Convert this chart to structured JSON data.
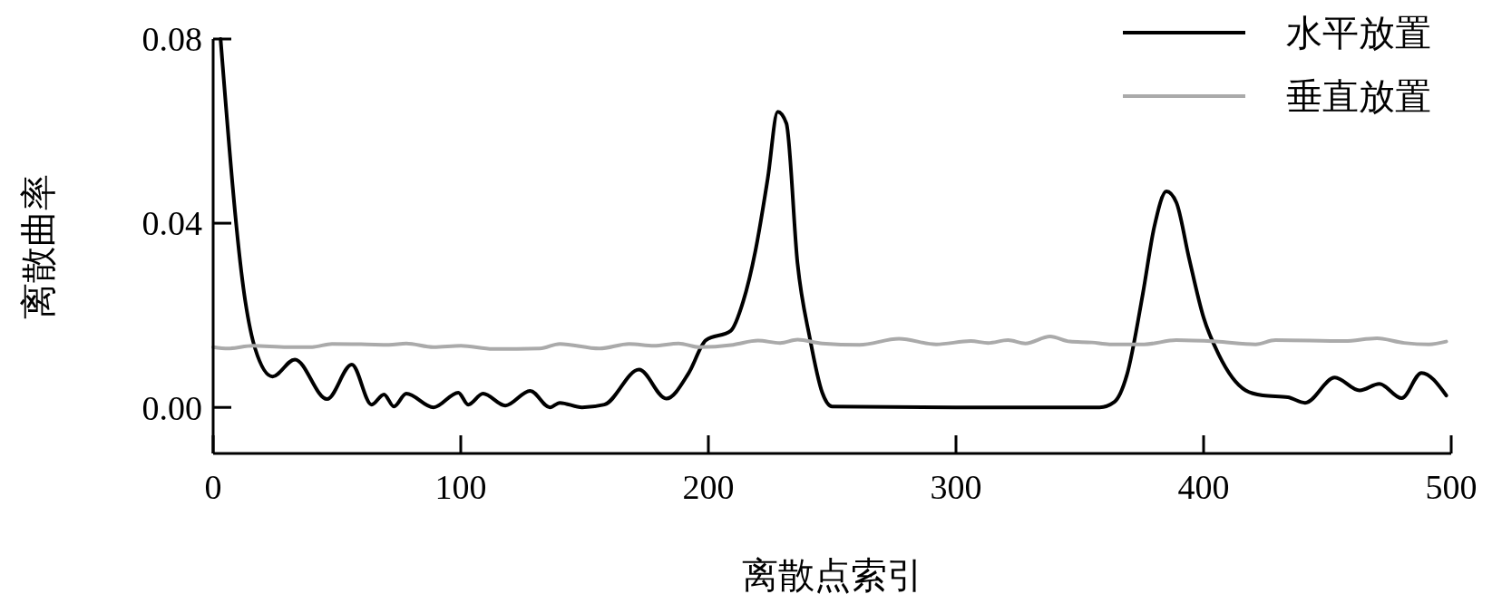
{
  "chart_data": {
    "type": "line",
    "xlabel": "离散点索引",
    "ylabel": "离散曲率",
    "xlim": [
      0,
      500
    ],
    "ylim": [
      -0.01,
      0.08
    ],
    "xticks": [
      0,
      100,
      200,
      300,
      400,
      500
    ],
    "yticks": [
      {
        "value": 0,
        "label": "0.00"
      },
      {
        "value": 0.04,
        "label": "0.04"
      },
      {
        "value": 0.08,
        "label": "0.08"
      }
    ],
    "legend": "top right",
    "grid": false,
    "line_style": "solid",
    "marker": "none",
    "series": [
      {
        "name": "水平放置",
        "color": "#000000",
        "x": [
          3,
          13,
          17,
          24,
          33,
          46,
          56,
          64,
          69,
          73,
          78,
          89,
          99,
          103,
          109,
          118,
          128,
          136,
          140,
          149,
          158,
          172,
          183,
          192,
          199,
          209,
          214,
          219,
          224,
          228,
          231.5,
          236,
          241,
          246,
          250,
          300,
          358,
          364,
          369,
          375.5,
          380,
          385,
          389,
          394,
          400,
          406,
          417,
          424,
          434,
          441,
          453,
          463,
          471,
          480,
          488,
          498
        ],
        "values": [
          0.08,
          0.023,
          0.0127,
          0.0067,
          0.0104,
          0.0018,
          0.0093,
          0.0006,
          0.0028,
          0.0002,
          0.003,
          0,
          0.0032,
          0.0006,
          0.003,
          0.0004,
          0.0036,
          0,
          0.001,
          0,
          0.0006,
          0.0082,
          0.0019,
          0.0074,
          0.0146,
          0.0166,
          0.0229,
          0.034,
          0.0498,
          0.0642,
          0.0617,
          0.0313,
          0.015,
          0.0032,
          0.0002,
          0,
          0,
          0.0012,
          0.007,
          0.0248,
          0.039,
          0.0469,
          0.0445,
          0.0327,
          0.0195,
          0.0116,
          0.0037,
          0.0026,
          0.0022,
          0.001,
          0.0065,
          0.0037,
          0.0051,
          0.002,
          0.0075,
          0.0026
        ]
      },
      {
        "name": "垂直放置",
        "color": "#aaaaaa",
        "x": [
          0,
          6,
          16,
          30,
          40,
          48,
          62,
          71,
          78,
          89,
          100,
          113,
          132,
          140,
          156,
          168,
          178,
          188,
          196,
          210,
          220,
          229,
          236,
          246,
          261,
          277,
          292,
          306,
          313,
          321,
          328,
          338,
          346,
          355,
          362,
          376,
          389,
          405,
          421,
          429,
          457,
          470,
          481,
          491,
          498
        ],
        "values": [
          0.0131,
          0.0128,
          0.0134,
          0.0131,
          0.0131,
          0.0138,
          0.0137,
          0.0136,
          0.0139,
          0.0131,
          0.0134,
          0.0127,
          0.0128,
          0.0138,
          0.0128,
          0.0138,
          0.0134,
          0.0139,
          0.0131,
          0.0136,
          0.0145,
          0.014,
          0.0147,
          0.0139,
          0.0136,
          0.0149,
          0.0137,
          0.0144,
          0.014,
          0.0146,
          0.0139,
          0.0154,
          0.0143,
          0.0141,
          0.0137,
          0.0137,
          0.0146,
          0.0143,
          0.0137,
          0.0146,
          0.0144,
          0.015,
          0.014,
          0.0137,
          0.0143
        ]
      }
    ]
  }
}
